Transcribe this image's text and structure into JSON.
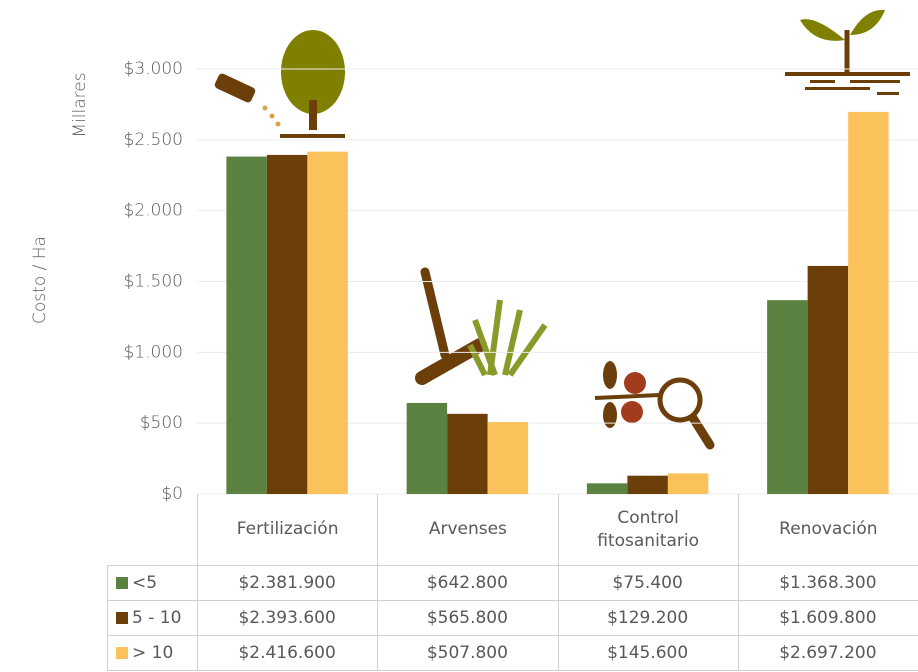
{
  "chart_data": {
    "type": "bar",
    "y_label": "Costo / Ha",
    "y_unit_label": "Millares",
    "categories": [
      "Fertilización",
      "Arvenses",
      "Control fitosanitario",
      "Renovación"
    ],
    "series": [
      {
        "name": "<5",
        "color": "#5b8240",
        "values": [
          2381.9,
          642.8,
          75.4,
          1368.3
        ],
        "value_labels": [
          "$2.381.900",
          "$642.800",
          "$75.400",
          "$1.368.300"
        ]
      },
      {
        "name": "5 - 10",
        "color": "#6b3e0a",
        "values": [
          2393.6,
          565.8,
          129.2,
          1609.8
        ],
        "value_labels": [
          "$2.393.600",
          "$565.800",
          "$129.200",
          "$1.609.800"
        ]
      },
      {
        "name": "> 10",
        "color": "#fbc25b",
        "values": [
          2416.6,
          507.8,
          145.6,
          2697.2
        ],
        "value_labels": [
          "$2.416.600",
          "$507.800",
          "$145.600",
          "$2.697.200"
        ]
      }
    ],
    "ylim": [
      0,
      3000
    ],
    "yticks": [
      {
        "value": 0,
        "label": "$0"
      },
      {
        "value": 500,
        "label": "$500"
      },
      {
        "value": 1000,
        "label": "$1.000"
      },
      {
        "value": 1500,
        "label": "$1.500"
      },
      {
        "value": 2000,
        "label": "$2.000"
      },
      {
        "value": 2500,
        "label": "$2.500"
      },
      {
        "value": 3000,
        "label": "$3.000"
      }
    ],
    "grid": true
  }
}
